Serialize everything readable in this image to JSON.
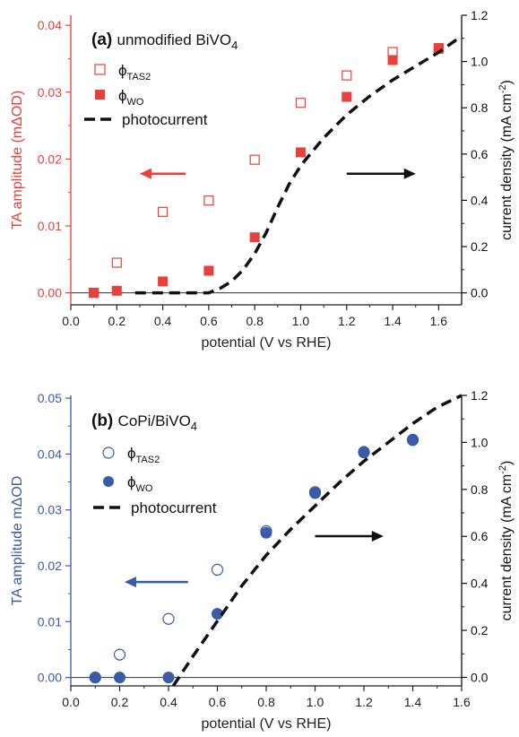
{
  "chart_data": [
    {
      "type": "scatter",
      "panel_label": "(a)",
      "title": "unmodified BiVO",
      "title_sub": "4",
      "xlabel": "potential (V vs RHE)",
      "ylabel_left": "TA amplitude (mΔOD)",
      "ylabel_right": "current density (mA cm",
      "ylabel_right_sup": "-2",
      "ylabel_right_close": ")",
      "xlim": [
        0.0,
        1.7
      ],
      "ylim_left": [
        -0.0018,
        0.0415
      ],
      "ylim_right": [
        -0.0518,
        1.2
      ],
      "xticks": [
        "0.0",
        "0.2",
        "0.4",
        "0.6",
        "0.8",
        "1.0",
        "1.2",
        "1.4",
        "1.6"
      ],
      "yticks_left": [
        "0.00",
        "0.01",
        "0.02",
        "0.03",
        "0.04"
      ],
      "yticks_right": [
        "0.0",
        "0.2",
        "0.4",
        "0.6",
        "0.8",
        "1.0",
        "1.2"
      ],
      "left_axis_color": "#e8403a",
      "right_axis_color": "#111111",
      "series": [
        {
          "name": "ϕ",
          "name_sub": "TAS2",
          "marker": "open-square",
          "color": "#e8403a",
          "x": [
            0.1,
            0.2,
            0.4,
            0.6,
            0.8,
            1.0,
            1.2,
            1.4,
            1.6
          ],
          "y": [
            0.0,
            0.0045,
            0.0121,
            0.0138,
            0.0199,
            0.0284,
            0.0325,
            0.036,
            0.0365
          ]
        },
        {
          "name": "ϕ",
          "name_sub": "WO",
          "marker": "filled-square",
          "color": "#e8403a",
          "x": [
            0.1,
            0.2,
            0.4,
            0.6,
            0.8,
            1.0,
            1.2,
            1.4,
            1.6
          ],
          "y": [
            0.0,
            0.0003,
            0.0017,
            0.0033,
            0.0083,
            0.021,
            0.0293,
            0.0348,
            0.0366
          ]
        },
        {
          "name": "photocurrent",
          "marker": "dashed-line",
          "color": "#111111",
          "axis": "right",
          "x": [
            0.28,
            0.35,
            0.4,
            0.5,
            0.6,
            0.65,
            0.7,
            0.75,
            0.8,
            0.85,
            0.9,
            0.95,
            1.0,
            1.1,
            1.2,
            1.3,
            1.4,
            1.5,
            1.6,
            1.7
          ],
          "y": [
            0.0,
            0.0,
            0.0,
            0.0,
            0.0,
            0.02,
            0.05,
            0.1,
            0.17,
            0.26,
            0.37,
            0.47,
            0.55,
            0.67,
            0.77,
            0.85,
            0.92,
            0.98,
            1.04,
            1.11
          ]
        }
      ],
      "annotations": [
        {
          "type": "arrow",
          "direction": "left",
          "color": "#e8403a",
          "x_from": 0.5,
          "x_to": 0.3,
          "y": 0.0178
        },
        {
          "type": "arrow",
          "direction": "right",
          "color": "#111111",
          "x_from": 1.2,
          "x_to": 1.5,
          "y": 0.0178
        }
      ]
    },
    {
      "type": "scatter",
      "panel_label": "(b)",
      "title": "CoPi/BiVO",
      "title_sub": "4",
      "xlabel": "potential (V vs RHE)",
      "ylabel_left": "TA amplitude mΔOD",
      "ylabel_right": "current density (mA cm",
      "ylabel_right_sup": "-2",
      "ylabel_right_close": ")",
      "xlim": [
        0.0,
        1.6
      ],
      "ylim_left": [
        -0.0015,
        0.0505
      ],
      "ylim_right": [
        -0.0364,
        1.2
      ],
      "xticks": [
        "0.0",
        "0.2",
        "0.4",
        "0.6",
        "0.8",
        "1.0",
        "1.2",
        "1.4",
        "1.6"
      ],
      "yticks_left": [
        "0.00",
        "0.01",
        "0.02",
        "0.03",
        "0.04",
        "0.05"
      ],
      "yticks_right": [
        "0.0",
        "0.2",
        "0.4",
        "0.6",
        "0.8",
        "1.0",
        "1.2"
      ],
      "left_axis_color": "#3b5aa8",
      "right_axis_color": "#111111",
      "series": [
        {
          "name": "ϕ",
          "name_sub": "TAS2",
          "marker": "open-circle",
          "color": "#3b5aa8",
          "x": [
            0.1,
            0.2,
            0.4,
            0.6,
            0.8,
            1.0,
            1.2,
            1.4
          ],
          "y": [
            0.0,
            0.0041,
            0.0105,
            0.0193,
            0.0262,
            0.0332,
            0.0403,
            0.0425
          ]
        },
        {
          "name": "ϕ",
          "name_sub": "WO",
          "marker": "filled-circle",
          "color": "#3b5aa8",
          "x": [
            0.1,
            0.2,
            0.4,
            0.6,
            0.8,
            1.0,
            1.2,
            1.4
          ],
          "y": [
            0.0,
            0.0,
            0.0,
            0.0114,
            0.0259,
            0.033,
            0.0404,
            0.0426
          ]
        },
        {
          "name": "photocurrent",
          "marker": "dashed-line",
          "color": "#111111",
          "axis": "right",
          "x": [
            0.42,
            0.5,
            0.6,
            0.7,
            0.8,
            0.9,
            1.0,
            1.1,
            1.2,
            1.3,
            1.4,
            1.5,
            1.6
          ],
          "y": [
            -0.036,
            0.09,
            0.24,
            0.39,
            0.52,
            0.63,
            0.73,
            0.83,
            0.92,
            1.0,
            1.08,
            1.15,
            1.2
          ]
        }
      ],
      "annotations": [
        {
          "type": "arrow",
          "direction": "left",
          "color": "#3b5aa8",
          "x_from": 0.48,
          "x_to": 0.22,
          "y": 0.0171
        },
        {
          "type": "arrow",
          "direction": "right",
          "color": "#111111",
          "x_from": 1.0,
          "x_to": 1.28,
          "y": 0.0253
        }
      ]
    }
  ]
}
